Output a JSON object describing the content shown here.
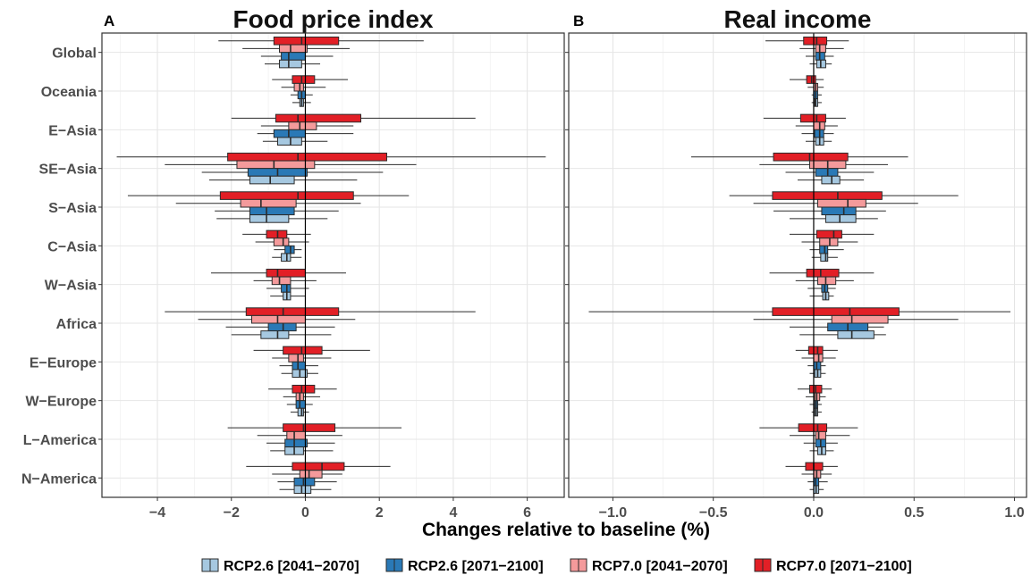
{
  "chart_data": {
    "type": "bar",
    "orientation": "horizontal",
    "xlabel": "Changes relative to baseline (%)",
    "categories": [
      "Global",
      "Oceania",
      "E−Asia",
      "SE−Asia",
      "S−Asia",
      "C−Asia",
      "W−Asia",
      "Africa",
      "E−Europe",
      "W−Europe",
      "L−America",
      "N−America"
    ],
    "legend": {
      "position": "bottom",
      "entries": [
        "RCP2.6 [2041−2070]",
        "RCP2.6 [2071−2100]",
        "RCP7.0 [2041−2070]",
        "RCP7.0 [2071−2100]"
      ]
    },
    "colors": {
      "RCP2.6 [2041−2070]": "#a6c8e0",
      "RCP2.6 [2071−2100]": "#2a79b6",
      "RCP7.0 [2041−2070]": "#f49a9b",
      "RCP7.0 [2071−2100]": "#e21f26"
    },
    "grid": true,
    "panels": [
      {
        "tag": "A",
        "title": "Food price index",
        "xlim": [
          -5.5,
          7.0
        ],
        "xticks": [
          -4,
          -2,
          0,
          2,
          4,
          6
        ],
        "xtick_labels": [
          "−4",
          "−2",
          "0",
          "2",
          "4",
          "6"
        ],
        "series": [
          {
            "name": "RCP7.0 [2071−2100]",
            "bar": [
              [
                -0.85,
                0.9
              ],
              [
                -0.35,
                0.25
              ],
              [
                -0.8,
                1.5
              ],
              [
                -2.1,
                2.2
              ],
              [
                -2.3,
                1.3
              ],
              [
                -1.05,
                -0.5
              ],
              [
                -1.05,
                0.0
              ],
              [
                -1.6,
                0.9
              ],
              [
                -0.6,
                0.45
              ],
              [
                -0.35,
                0.25
              ],
              [
                -0.6,
                0.8
              ],
              [
                -0.35,
                1.05
              ]
            ],
            "median": [
              -0.1,
              -0.1,
              -0.2,
              -0.2,
              -0.2,
              -0.75,
              -0.75,
              -0.6,
              -0.1,
              -0.1,
              -0.05,
              0.45
            ],
            "whisker": [
              [
                -2.35,
                3.2
              ],
              [
                -0.9,
                1.15
              ],
              [
                -2.0,
                4.6
              ],
              [
                -5.1,
                6.5
              ],
              [
                -4.8,
                2.8
              ],
              [
                -1.7,
                0.15
              ],
              [
                -2.55,
                1.1
              ],
              [
                -3.8,
                4.6
              ],
              [
                -1.4,
                1.75
              ],
              [
                -1.0,
                0.85
              ],
              [
                -2.1,
                2.6
              ],
              [
                -1.6,
                2.3
              ]
            ]
          },
          {
            "name": "RCP7.0 [2041−2070]",
            "bar": [
              [
                -0.7,
                0.05
              ],
              [
                -0.3,
                -0.05
              ],
              [
                -0.45,
                0.3
              ],
              [
                -1.85,
                0.25
              ],
              [
                -1.75,
                -0.25
              ],
              [
                -0.85,
                -0.45
              ],
              [
                -0.9,
                -0.4
              ],
              [
                -1.45,
                0.0
              ],
              [
                -0.45,
                -0.05
              ],
              [
                -0.25,
                -0.05
              ],
              [
                -0.5,
                0.0
              ],
              [
                -0.15,
                0.45
              ]
            ],
            "median": [
              -0.4,
              -0.15,
              -0.15,
              -0.85,
              -1.2,
              -0.6,
              -0.7,
              -0.75,
              -0.2,
              -0.15,
              -0.3,
              0.1
            ],
            "whisker": [
              [
                -1.7,
                1.2
              ],
              [
                -0.65,
                0.55
              ],
              [
                -1.2,
                1.3
              ],
              [
                -3.8,
                3.0
              ],
              [
                -3.5,
                1.5
              ],
              [
                -1.35,
                0.1
              ],
              [
                -1.4,
                0.3
              ],
              [
                -2.9,
                1.35
              ],
              [
                -0.9,
                0.7
              ],
              [
                -0.6,
                0.4
              ],
              [
                -1.3,
                1.0
              ],
              [
                -0.9,
                1.0
              ]
            ]
          },
          {
            "name": "RCP2.6 [2071−2100]",
            "bar": [
              [
                -0.65,
                0.0
              ],
              [
                -0.2,
                0.0
              ],
              [
                -0.85,
                0.0
              ],
              [
                -1.55,
                0.05
              ],
              [
                -1.5,
                -0.3
              ],
              [
                -0.55,
                -0.3
              ],
              [
                -0.65,
                -0.4
              ],
              [
                -1.0,
                -0.25
              ],
              [
                -0.35,
                0.0
              ],
              [
                -0.25,
                0.0
              ],
              [
                -0.55,
                0.05
              ],
              [
                -0.3,
                0.25
              ]
            ],
            "median": [
              -0.45,
              -0.1,
              -0.45,
              -0.75,
              -1.05,
              -0.4,
              -0.5,
              -0.6,
              -0.2,
              -0.15,
              -0.3,
              -0.05
            ],
            "whisker": [
              [
                -1.2,
                0.75
              ],
              [
                -0.4,
                0.2
              ],
              [
                -1.3,
                1.3
              ],
              [
                -2.8,
                2.1
              ],
              [
                -2.45,
                0.9
              ],
              [
                -0.85,
                -0.1
              ],
              [
                -1.05,
                0.1
              ],
              [
                -2.15,
                0.8
              ],
              [
                -0.7,
                0.35
              ],
              [
                -0.5,
                0.2
              ],
              [
                -1.05,
                0.8
              ],
              [
                -0.75,
                0.85
              ]
            ]
          },
          {
            "name": "RCP2.6 [2041−2070]",
            "bar": [
              [
                -0.7,
                -0.1
              ],
              [
                -0.15,
                -0.05
              ],
              [
                -0.75,
                -0.1
              ],
              [
                -1.5,
                -0.3
              ],
              [
                -1.5,
                -0.45
              ],
              [
                -0.65,
                -0.4
              ],
              [
                -0.6,
                -0.4
              ],
              [
                -1.2,
                -0.45
              ],
              [
                -0.35,
                0.05
              ],
              [
                -0.2,
                -0.05
              ],
              [
                -0.55,
                -0.05
              ],
              [
                -0.3,
                0.15
              ]
            ],
            "median": [
              -0.45,
              -0.1,
              -0.4,
              -0.95,
              -1.05,
              -0.5,
              -0.5,
              -0.75,
              -0.15,
              -0.1,
              -0.3,
              -0.1
            ],
            "whisker": [
              [
                -1.1,
                0.4
              ],
              [
                -0.35,
                0.15
              ],
              [
                -1.15,
                0.6
              ],
              [
                -2.6,
                1.4
              ],
              [
                -2.4,
                0.6
              ],
              [
                -0.9,
                -0.1
              ],
              [
                -0.95,
                0.0
              ],
              [
                -2.0,
                0.7
              ],
              [
                -0.65,
                0.35
              ],
              [
                -0.4,
                0.1
              ],
              [
                -0.95,
                0.75
              ],
              [
                -0.7,
                0.7
              ]
            ]
          }
        ]
      },
      {
        "tag": "B",
        "title": "Real income",
        "xlim": [
          -1.22,
          1.06
        ],
        "xticks": [
          -1.0,
          -0.5,
          0.0,
          0.5,
          1.0
        ],
        "xtick_labels": [
          "−1.0",
          "−0.5",
          "0.0",
          "0.5",
          "1.0"
        ],
        "series": [
          {
            "name": "RCP7.0 [2071−2100]",
            "bar": [
              [
                -0.05,
                0.065
              ],
              [
                -0.035,
                0.01
              ],
              [
                -0.065,
                0.06
              ],
              [
                -0.2,
                0.17
              ],
              [
                -0.205,
                0.34
              ],
              [
                0.015,
                0.14
              ],
              [
                -0.035,
                0.125
              ],
              [
                -0.205,
                0.425
              ],
              [
                -0.025,
                0.045
              ],
              [
                -0.02,
                0.04
              ],
              [
                -0.075,
                0.065
              ],
              [
                -0.04,
                0.045
              ]
            ],
            "median": [
              0.015,
              -0.01,
              0.015,
              -0.02,
              0.12,
              0.1,
              0.035,
              0.18,
              0.02,
              0.01,
              0.02,
              0.0
            ],
            "whisker": [
              [
                -0.24,
                0.175
              ],
              [
                -0.12,
                0.05
              ],
              [
                -0.25,
                0.16
              ],
              [
                -0.61,
                0.47
              ],
              [
                -0.42,
                0.72
              ],
              [
                -0.12,
                0.3
              ],
              [
                -0.22,
                0.3
              ],
              [
                -1.12,
                0.98
              ],
              [
                -0.09,
                0.12
              ],
              [
                -0.08,
                0.09
              ],
              [
                -0.27,
                0.22
              ],
              [
                -0.14,
                0.12
              ]
            ]
          },
          {
            "name": "RCP7.0 [2041−2070]",
            "bar": [
              [
                0.01,
                0.06
              ],
              [
                0.0,
                0.02
              ],
              [
                0.0,
                0.055
              ],
              [
                -0.02,
                0.16
              ],
              [
                0.02,
                0.26
              ],
              [
                0.03,
                0.12
              ],
              [
                0.02,
                0.11
              ],
              [
                0.09,
                0.37
              ],
              [
                0.0,
                0.045
              ],
              [
                0.005,
                0.03
              ],
              [
                0.01,
                0.06
              ],
              [
                0.0,
                0.035
              ]
            ],
            "median": [
              0.03,
              0.01,
              0.03,
              0.07,
              0.17,
              0.08,
              0.06,
              0.19,
              0.025,
              0.015,
              0.025,
              0.015
            ],
            "whisker": [
              [
                -0.07,
                0.15
              ],
              [
                -0.03,
                0.05
              ],
              [
                -0.09,
                0.12
              ],
              [
                -0.27,
                0.37
              ],
              [
                -0.3,
                0.52
              ],
              [
                -0.06,
                0.22
              ],
              [
                -0.09,
                0.2
              ],
              [
                -0.3,
                0.72
              ],
              [
                -0.06,
                0.11
              ],
              [
                -0.04,
                0.06
              ],
              [
                -0.12,
                0.18
              ],
              [
                -0.06,
                0.09
              ]
            ]
          },
          {
            "name": "RCP2.6 [2071−2100]",
            "bar": [
              [
                0.01,
                0.055
              ],
              [
                0.0,
                0.02
              ],
              [
                0.005,
                0.05
              ],
              [
                0.01,
                0.12
              ],
              [
                0.04,
                0.21
              ],
              [
                0.03,
                0.07
              ],
              [
                0.04,
                0.07
              ],
              [
                0.07,
                0.27
              ],
              [
                0.0,
                0.035
              ],
              [
                0.005,
                0.02
              ],
              [
                0.01,
                0.06
              ],
              [
                0.0,
                0.025
              ]
            ],
            "median": [
              0.03,
              0.01,
              0.03,
              0.07,
              0.15,
              0.055,
              0.055,
              0.17,
              0.015,
              0.012,
              0.035,
              0.01
            ],
            "whisker": [
              [
                -0.04,
                0.1
              ],
              [
                -0.01,
                0.04
              ],
              [
                -0.06,
                0.1
              ],
              [
                -0.14,
                0.3
              ],
              [
                -0.2,
                0.36
              ],
              [
                -0.02,
                0.15
              ],
              [
                -0.03,
                0.11
              ],
              [
                -0.12,
                0.35
              ],
              [
                -0.03,
                0.06
              ],
              [
                -0.02,
                0.04
              ],
              [
                -0.05,
                0.12
              ],
              [
                -0.03,
                0.07
              ]
            ]
          },
          {
            "name": "RCP2.6 [2041−2070]",
            "bar": [
              [
                0.015,
                0.06
              ],
              [
                0.005,
                0.02
              ],
              [
                0.01,
                0.05
              ],
              [
                0.04,
                0.13
              ],
              [
                0.06,
                0.21
              ],
              [
                0.035,
                0.07
              ],
              [
                0.045,
                0.075
              ],
              [
                0.12,
                0.3
              ],
              [
                0.005,
                0.035
              ],
              [
                0.005,
                0.02
              ],
              [
                0.02,
                0.06
              ],
              [
                0.0,
                0.025
              ]
            ],
            "median": [
              0.035,
              0.01,
              0.03,
              0.09,
              0.13,
              0.06,
              0.06,
              0.19,
              0.02,
              0.012,
              0.04,
              0.012
            ],
            "whisker": [
              [
                -0.02,
                0.09
              ],
              [
                -0.01,
                0.04
              ],
              [
                -0.04,
                0.09
              ],
              [
                -0.08,
                0.25
              ],
              [
                -0.12,
                0.32
              ],
              [
                -0.01,
                0.12
              ],
              [
                -0.02,
                0.1
              ],
              [
                -0.07,
                0.36
              ],
              [
                -0.02,
                0.06
              ],
              [
                -0.01,
                0.04
              ],
              [
                -0.02,
                0.1
              ],
              [
                -0.02,
                0.05
              ]
            ]
          }
        ]
      }
    ]
  }
}
